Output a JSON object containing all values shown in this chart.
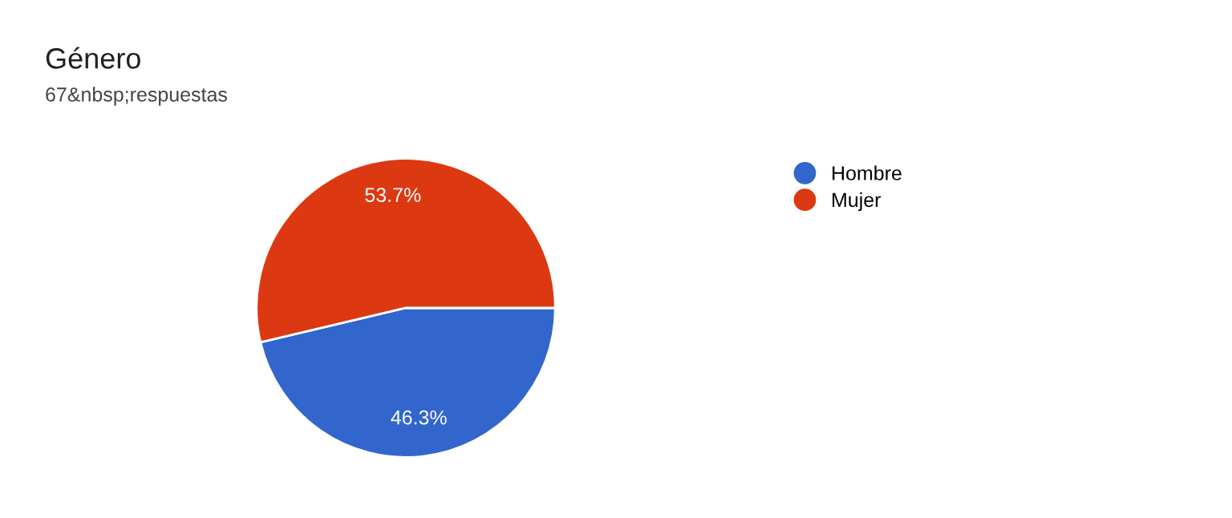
{
  "chart_data": {
    "type": "pie",
    "title": "Género",
    "subtitle": "67&nbsp;respuestas",
    "categories": [
      "Hombre",
      "Mujer"
    ],
    "values": [
      46.3,
      53.7
    ],
    "colors": [
      "#3366cc",
      "#dc3912"
    ],
    "value_labels": [
      "46.3%",
      "53.7%"
    ],
    "legend": "right"
  }
}
